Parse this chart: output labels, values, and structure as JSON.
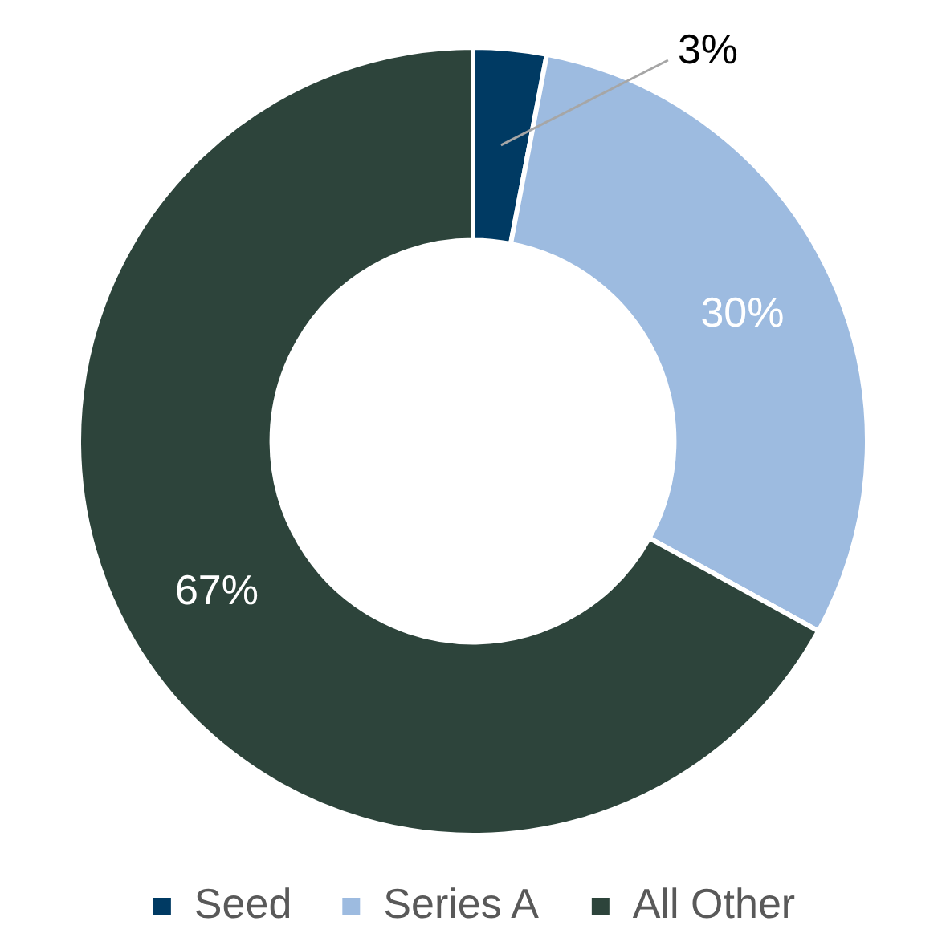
{
  "chart_data": {
    "type": "donut",
    "categories": [
      "Seed",
      "Series A",
      "All Other"
    ],
    "values": [
      3,
      30,
      67
    ],
    "colors": [
      "#003a63",
      "#9dbbe0",
      "#2d443b"
    ],
    "value_labels": [
      "3%",
      "30%",
      "67%"
    ],
    "legend": "bottom"
  }
}
